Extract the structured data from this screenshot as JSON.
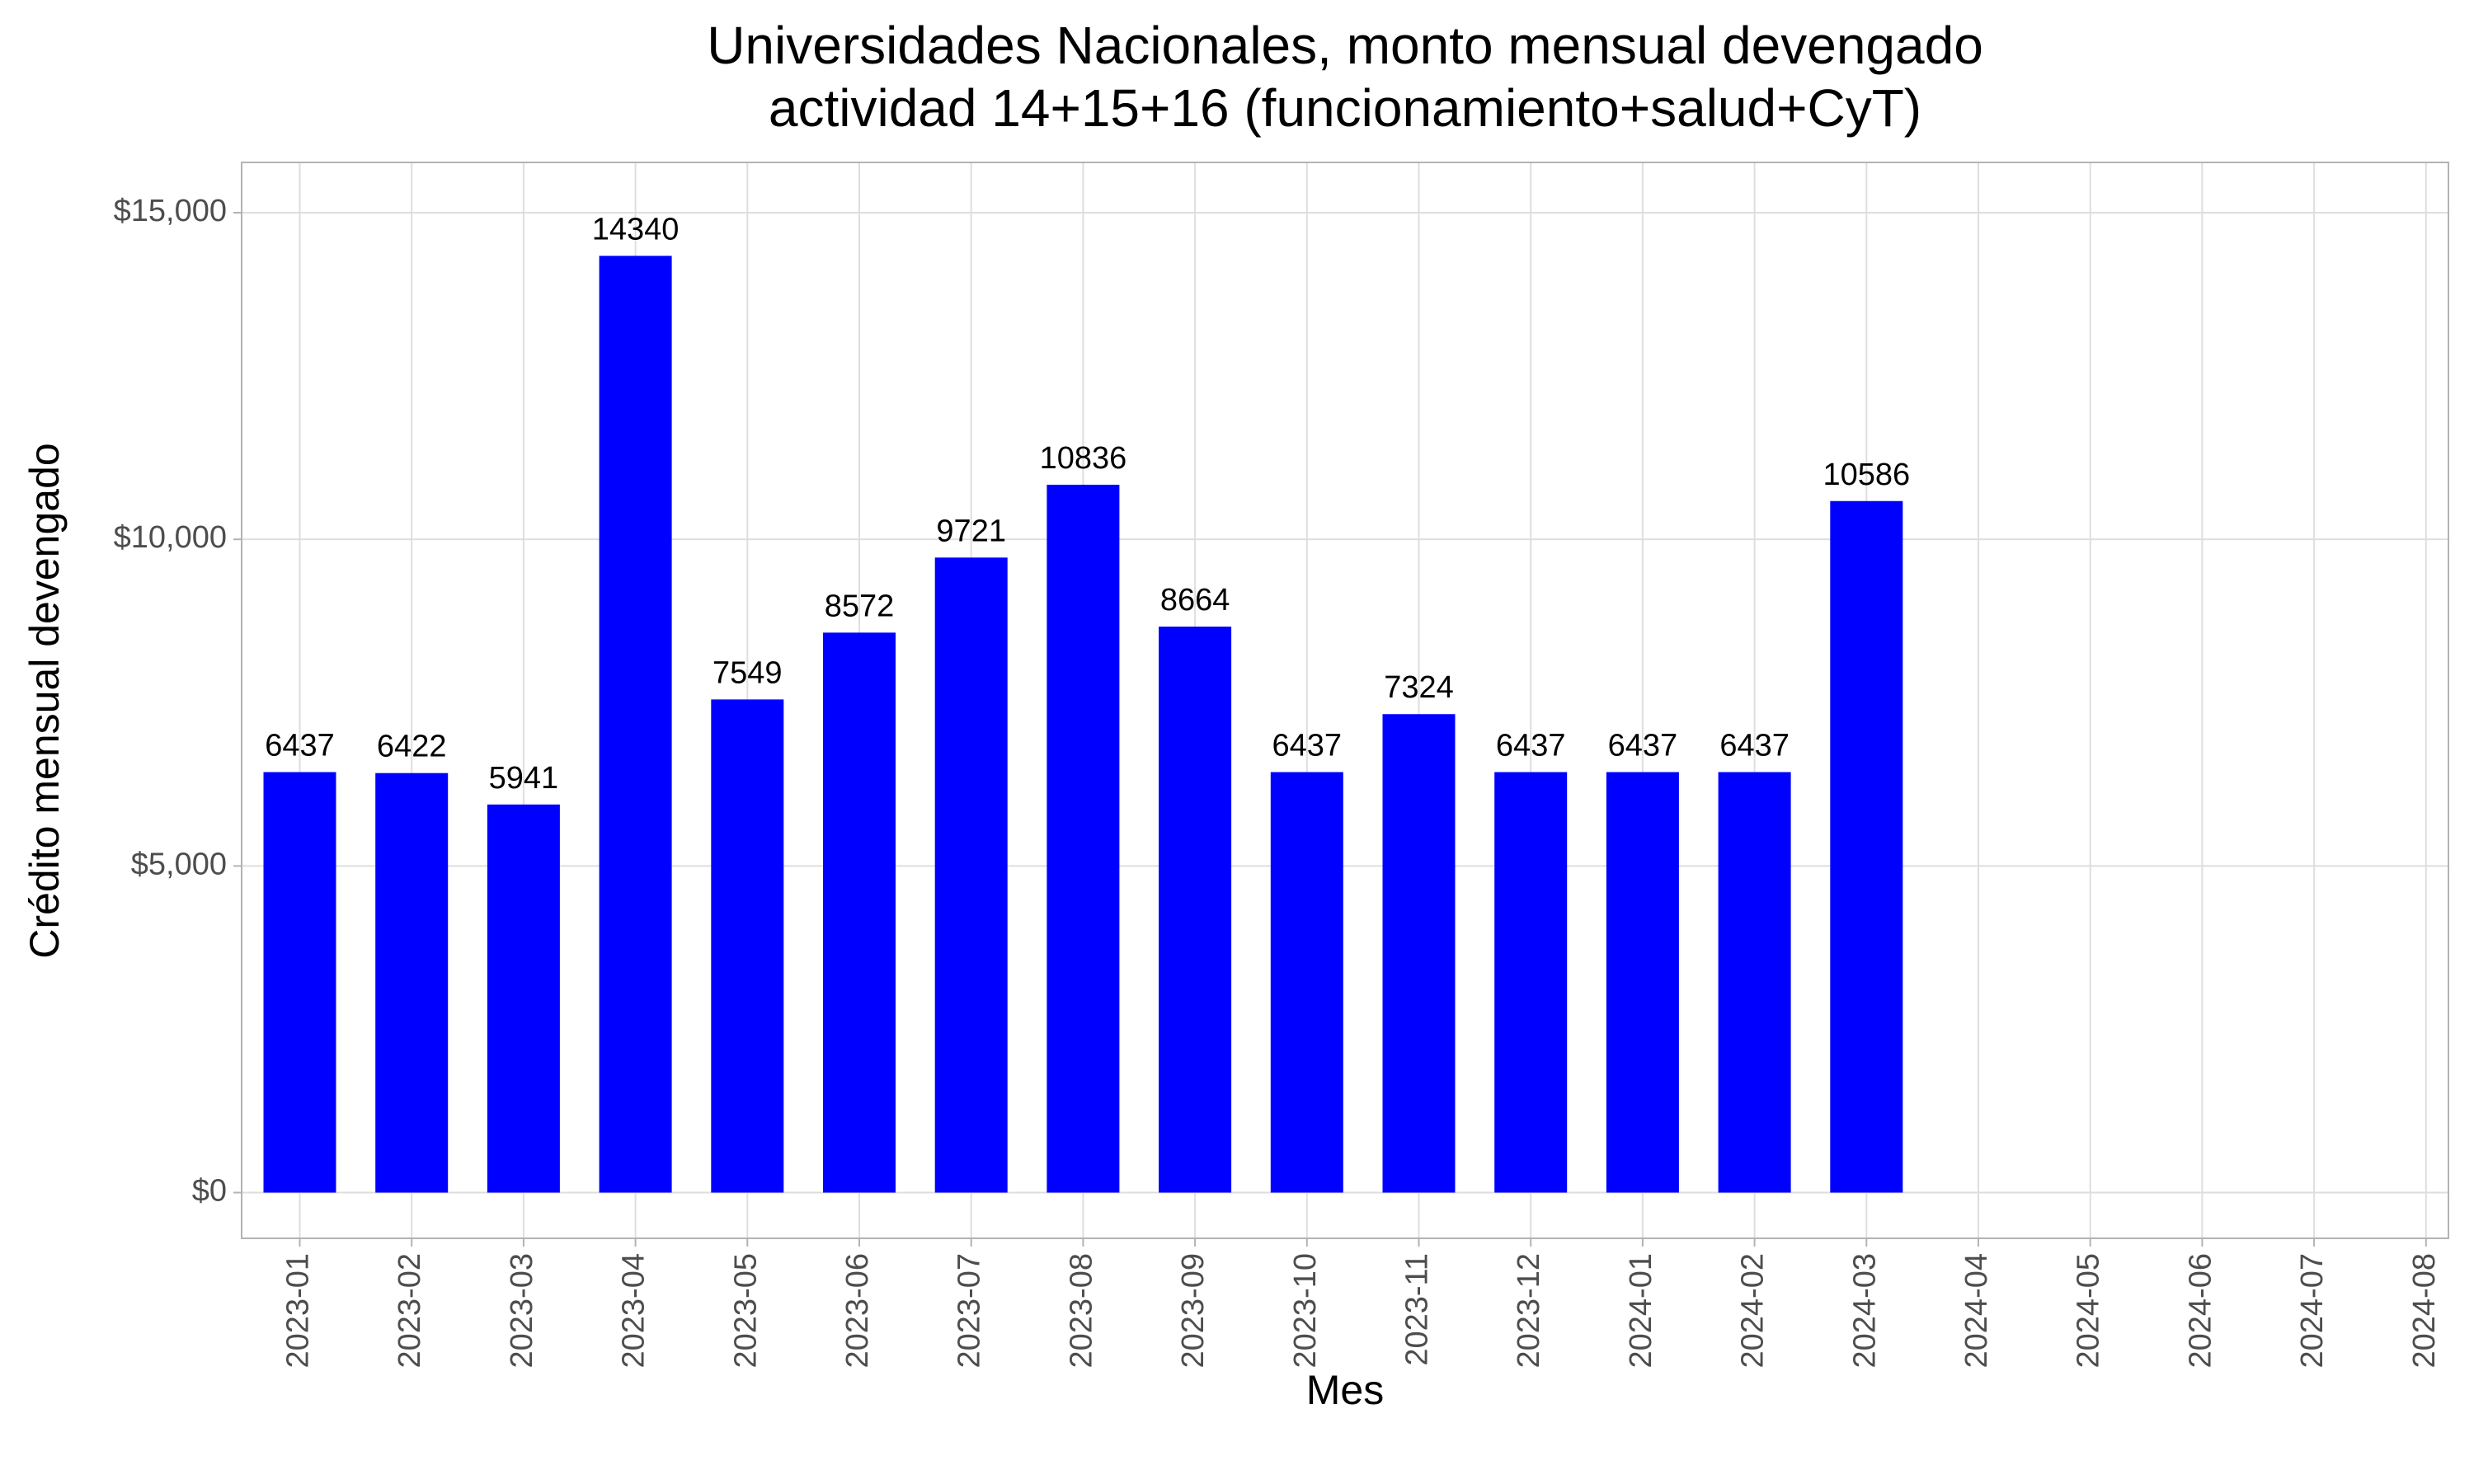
{
  "chart_data": {
    "type": "bar",
    "title": "Universidades Nacionales, monto mensual devengado",
    "subtitle": "actividad 14+15+16 (funcionamiento+salud+CyT)",
    "x_label": "Mes",
    "y_label": "Crédito mensual devengado",
    "x": [
      "2023-01",
      "2023-02",
      "2023-03",
      "2023-04",
      "2023-05",
      "2023-06",
      "2023-07",
      "2023-08",
      "2023-09",
      "2023-10",
      "2023-11",
      "2023-12",
      "2024-01",
      "2024-02",
      "2024-03"
    ],
    "values": [
      6437,
      6422,
      5941,
      14340,
      7549,
      8572,
      9721,
      10836,
      8664,
      6437,
      7324,
      6437,
      6437,
      6437,
      10586
    ],
    "color": "#0000ff",
    "xticks": [
      "2023-01",
      "2023-02",
      "2023-03",
      "2023-04",
      "2023-05",
      "2023-06",
      "2023-07",
      "2023-08",
      "2023-09",
      "2023-10",
      "2023-11",
      "2023-12",
      "2024-01",
      "2024-02",
      "2024-03",
      "2024-04",
      "2024-05",
      "2024-06",
      "2024-07",
      "2024-08"
    ],
    "ylim": [
      -700,
      15770
    ],
    "yticks": [
      {
        "value": 0,
        "label": "$0"
      },
      {
        "value": 5000,
        "label": "$5,000"
      },
      {
        "value": 10000,
        "label": "$10,000"
      },
      {
        "value": 15000,
        "label": "$15,000"
      }
    ],
    "grid": true
  }
}
